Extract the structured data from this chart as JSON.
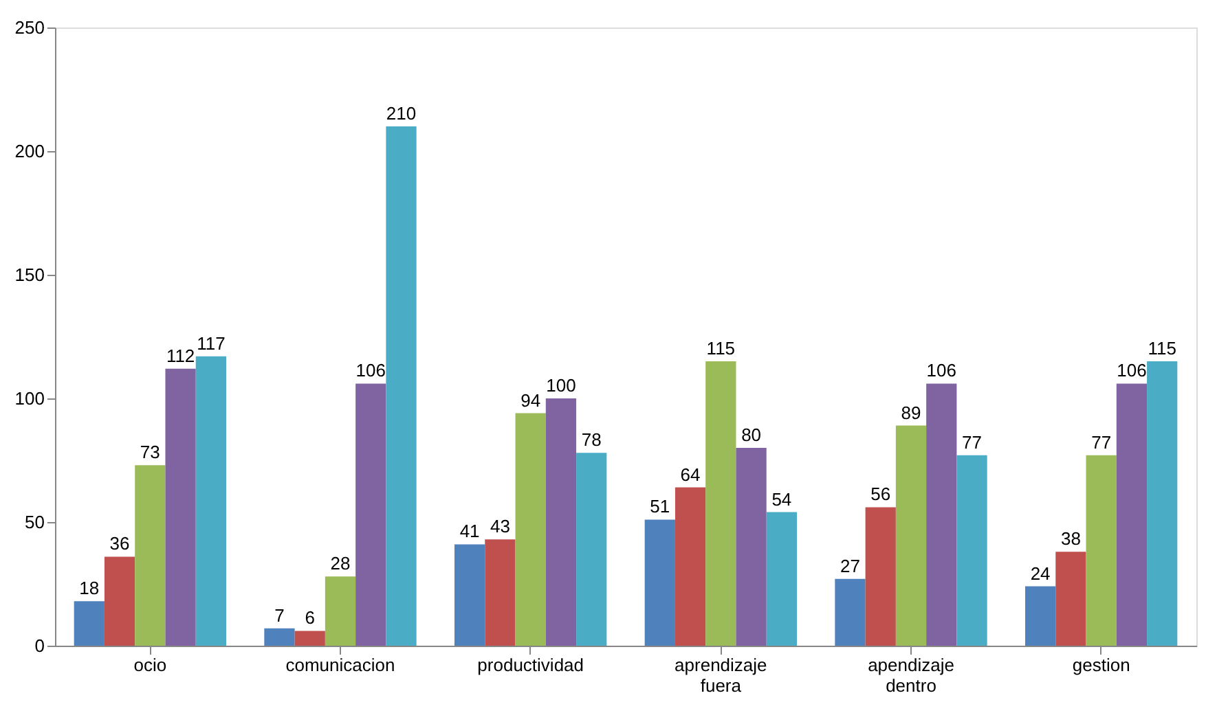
{
  "chart_data": {
    "type": "bar",
    "categories": [
      "ocio",
      "comunicacion",
      "productividad",
      "aprendizaje fuera",
      "apendizaje dentro",
      "gestion"
    ],
    "series": [
      {
        "color": "#4f81bd",
        "values": [
          18,
          7,
          41,
          51,
          27,
          24
        ]
      },
      {
        "color": "#c0504d",
        "values": [
          36,
          6,
          43,
          64,
          56,
          38
        ]
      },
      {
        "color": "#9bbb59",
        "values": [
          73,
          28,
          94,
          115,
          89,
          77
        ]
      },
      {
        "color": "#8064a2",
        "values": [
          112,
          106,
          100,
          80,
          106,
          106
        ]
      },
      {
        "color": "#4bacc6",
        "values": [
          117,
          210,
          78,
          54,
          77,
          115
        ]
      }
    ],
    "ylim": [
      0,
      250
    ],
    "yticks": [
      0,
      50,
      100,
      150,
      200,
      250
    ],
    "data_labels": true
  }
}
